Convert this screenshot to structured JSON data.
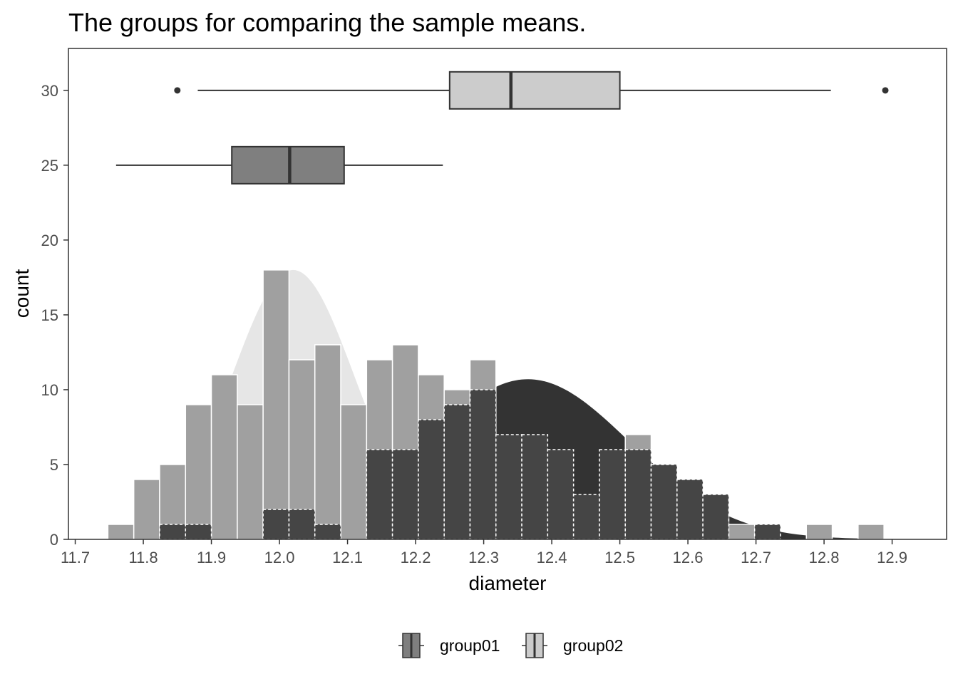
{
  "chart_data": {
    "type": "histogram",
    "title": "The groups for comparing the sample means.",
    "xlabel": "diameter",
    "ylabel": "count",
    "xlim": [
      11.69,
      12.98
    ],
    "ylim": [
      0,
      32.8
    ],
    "x_ticks": [
      11.7,
      11.8,
      11.9,
      12.0,
      12.1,
      12.2,
      12.3,
      12.4,
      12.5,
      12.6,
      12.7,
      12.8,
      12.9
    ],
    "x_tick_labels": [
      "11.7",
      "11.8",
      "11.9",
      "12.0",
      "12.1",
      "12.2",
      "12.3",
      "12.4",
      "12.5",
      "12.6",
      "12.7",
      "12.8",
      "12.9"
    ],
    "y_ticks": [
      0,
      5,
      10,
      15,
      20,
      25,
      30
    ],
    "y_tick_labels": [
      "0",
      "5",
      "10",
      "15",
      "20",
      "25",
      "30"
    ],
    "bin_width": 0.038,
    "bin_start": 11.748,
    "series": [
      {
        "name": "group01",
        "fill": "#a0a0a0",
        "box_fill": "#7f7f7f",
        "counts": [
          1,
          4,
          5,
          9,
          11,
          9,
          18,
          12,
          13,
          9,
          12,
          13,
          11,
          10,
          12,
          0,
          0,
          0,
          0,
          0,
          7,
          0,
          4,
          3,
          1,
          0,
          0,
          1,
          0,
          1
        ],
        "density_curve": {
          "mean": 12.02,
          "sd": 0.09,
          "peak": 18,
          "fill": "#e6e6e6"
        },
        "boxplot": {
          "y": 25,
          "whisker_low": 11.76,
          "q1": 11.93,
          "median": 12.015,
          "q3": 12.095,
          "whisker_high": 12.24,
          "outliers": []
        }
      },
      {
        "name": "group02",
        "fill": "#454545",
        "box_fill": "#cccccc",
        "counts": [
          0,
          0,
          1,
          1,
          0,
          0,
          2,
          2,
          1,
          0,
          6,
          6,
          8,
          9,
          10,
          7,
          7,
          6,
          3,
          6,
          6,
          5,
          4,
          3,
          0,
          1,
          0,
          0,
          0,
          0
        ],
        "density_curve": {
          "mean": 12.365,
          "sd": 0.15,
          "peak": 10.7,
          "fill": "#333333"
        },
        "boxplot": {
          "y": 30,
          "whisker_low": 11.88,
          "q1": 12.25,
          "median": 12.34,
          "q3": 12.5,
          "whisker_high": 12.81,
          "outliers": [
            11.85,
            12.89
          ]
        }
      }
    ],
    "legend": {
      "position": "bottom",
      "entries": [
        {
          "label": "group01",
          "fill": "#7f7f7f"
        },
        {
          "label": "group02",
          "fill": "#cccccc"
        }
      ]
    }
  }
}
